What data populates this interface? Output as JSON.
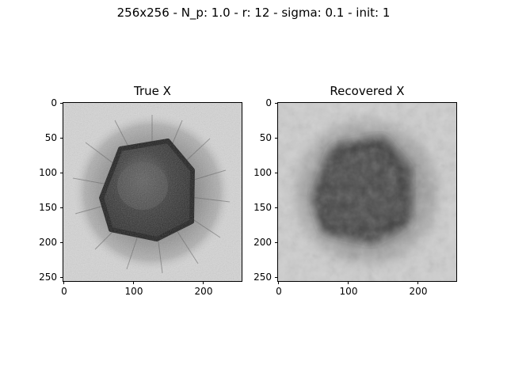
{
  "suptitle": "256x256 - N_p: 1.0 - r: 12 - sigma: 0.1 - init: 1",
  "panels": [
    {
      "title": "True X",
      "y_ticks": [
        "0",
        "50",
        "100",
        "150",
        "200",
        "250"
      ],
      "x_ticks": [
        "0",
        "100",
        "200"
      ]
    },
    {
      "title": "Recovered X",
      "y_ticks": [
        "0",
        "50",
        "100",
        "150",
        "200",
        "250"
      ],
      "x_ticks": [
        "0",
        "100",
        "200"
      ]
    }
  ]
}
